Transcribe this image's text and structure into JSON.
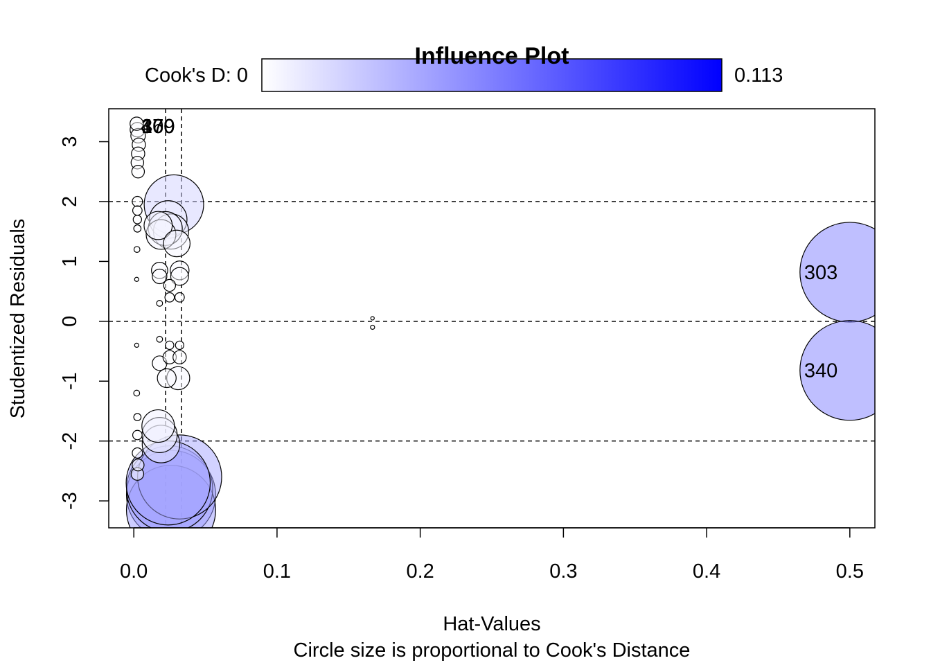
{
  "chart_data": {
    "type": "scatter",
    "title": "Influence Plot",
    "xlabel": "Hat-Values",
    "subtitle": "Circle size is proportional to Cook's Distance",
    "ylabel": "Studentized Residuals",
    "xlim": [
      -0.0175,
      0.5175
    ],
    "ylim": [
      -3.45,
      3.55
    ],
    "x_ticks": [
      0.0,
      0.1,
      0.2,
      0.3,
      0.4,
      0.5
    ],
    "x_tick_labels": [
      "0.0",
      "0.1",
      "0.2",
      "0.3",
      "0.4",
      "0.5"
    ],
    "y_ticks": [
      -3,
      -2,
      -1,
      0,
      1,
      2,
      3
    ],
    "y_tick_labels": [
      "-3",
      "-2",
      "-1",
      "0",
      "1",
      "2",
      "3"
    ],
    "reference_lines": {
      "horizontal": [
        -2,
        0,
        2
      ],
      "vertical": [
        0.0222,
        0.0333
      ]
    },
    "legend": {
      "label_left": "Cook's D: 0",
      "label_right": "0.113",
      "min": 0,
      "max": 0.113,
      "color_low": "#ffffff",
      "color_high": "#0000ff",
      "placement": "top"
    },
    "cook_max": 0.113,
    "points": [
      {
        "x": 0.002,
        "y": 3.3,
        "cook": 0.001,
        "label": ""
      },
      {
        "x": 0.0025,
        "y": 3.2,
        "cook": 0.0012,
        "label": ""
      },
      {
        "x": 0.003,
        "y": 3.1,
        "cook": 0.0012,
        "label": ""
      },
      {
        "x": 0.0035,
        "y": 2.95,
        "cook": 0.001,
        "label": ""
      },
      {
        "x": 0.003,
        "y": 2.8,
        "cook": 0.001,
        "label": ""
      },
      {
        "x": 0.0025,
        "y": 2.65,
        "cook": 0.0009,
        "label": ""
      },
      {
        "x": 0.003,
        "y": 2.5,
        "cook": 0.0009,
        "label": ""
      },
      {
        "x": 0.0025,
        "y": 2.0,
        "cook": 0.0006,
        "label": ""
      },
      {
        "x": 0.0025,
        "y": 1.85,
        "cook": 0.0005,
        "label": ""
      },
      {
        "x": 0.0025,
        "y": 1.7,
        "cook": 0.0004,
        "label": ""
      },
      {
        "x": 0.0025,
        "y": 1.55,
        "cook": 0.0003,
        "label": ""
      },
      {
        "x": 0.0022,
        "y": 1.2,
        "cook": 0.0002,
        "label": ""
      },
      {
        "x": 0.002,
        "y": 0.7,
        "cook": 0.0001,
        "label": ""
      },
      {
        "x": 0.002,
        "y": -0.4,
        "cook": 0.0001,
        "label": ""
      },
      {
        "x": 0.002,
        "y": -1.2,
        "cook": 0.0002,
        "label": ""
      },
      {
        "x": 0.0025,
        "y": -1.6,
        "cook": 0.0003,
        "label": ""
      },
      {
        "x": 0.0025,
        "y": -1.9,
        "cook": 0.0005,
        "label": ""
      },
      {
        "x": 0.0025,
        "y": -2.2,
        "cook": 0.0006,
        "label": ""
      },
      {
        "x": 0.003,
        "y": -2.4,
        "cook": 0.0008,
        "label": ""
      },
      {
        "x": 0.0025,
        "y": -2.55,
        "cook": 0.0009,
        "label": ""
      },
      {
        "x": 0.017,
        "y": 1.6,
        "cook": 0.0045,
        "label": ""
      },
      {
        "x": 0.019,
        "y": 1.45,
        "cook": 0.005,
        "label": ""
      },
      {
        "x": 0.022,
        "y": 1.55,
        "cook": 0.0065,
        "label": ""
      },
      {
        "x": 0.024,
        "y": 1.7,
        "cook": 0.008,
        "label": ""
      },
      {
        "x": 0.026,
        "y": 1.5,
        "cook": 0.007,
        "label": ""
      },
      {
        "x": 0.028,
        "y": 1.95,
        "cook": 0.02,
        "label": ""
      },
      {
        "x": 0.03,
        "y": 1.3,
        "cook": 0.004,
        "label": ""
      },
      {
        "x": 0.018,
        "y": 0.85,
        "cook": 0.0015,
        "label": ""
      },
      {
        "x": 0.018,
        "y": 0.75,
        "cook": 0.0012,
        "label": ""
      },
      {
        "x": 0.032,
        "y": 0.85,
        "cook": 0.002,
        "label": ""
      },
      {
        "x": 0.032,
        "y": 0.75,
        "cook": 0.0018,
        "label": ""
      },
      {
        "x": 0.025,
        "y": 0.6,
        "cook": 0.0008,
        "label": ""
      },
      {
        "x": 0.025,
        "y": 0.4,
        "cook": 0.0005,
        "label": ""
      },
      {
        "x": 0.032,
        "y": 0.4,
        "cook": 0.0005,
        "label": ""
      },
      {
        "x": 0.018,
        "y": 0.3,
        "cook": 0.0002,
        "label": ""
      },
      {
        "x": 0.018,
        "y": -0.3,
        "cook": 0.0002,
        "label": ""
      },
      {
        "x": 0.025,
        "y": -0.4,
        "cook": 0.0004,
        "label": ""
      },
      {
        "x": 0.032,
        "y": -0.4,
        "cook": 0.0004,
        "label": ""
      },
      {
        "x": 0.018,
        "y": -0.7,
        "cook": 0.0012,
        "label": ""
      },
      {
        "x": 0.025,
        "y": -0.6,
        "cook": 0.001,
        "label": ""
      },
      {
        "x": 0.032,
        "y": -0.6,
        "cook": 0.001,
        "label": ""
      },
      {
        "x": 0.023,
        "y": -0.95,
        "cook": 0.002,
        "label": ""
      },
      {
        "x": 0.031,
        "y": -0.95,
        "cook": 0.003,
        "label": ""
      },
      {
        "x": 0.017,
        "y": -1.75,
        "cook": 0.006,
        "label": ""
      },
      {
        "x": 0.018,
        "y": -1.9,
        "cook": 0.007,
        "label": ""
      },
      {
        "x": 0.019,
        "y": -2.05,
        "cook": 0.008,
        "label": ""
      },
      {
        "x": 0.032,
        "y": -2.6,
        "cook": 0.04,
        "label": ""
      },
      {
        "x": 0.024,
        "y": -2.7,
        "cook": 0.04,
        "label": ""
      },
      {
        "x": 0.025,
        "y": -2.8,
        "cook": 0.042,
        "label": ""
      },
      {
        "x": 0.026,
        "y": -2.9,
        "cook": 0.045,
        "label": ""
      },
      {
        "x": 0.026,
        "y": -3.15,
        "cook": 0.045,
        "label": ""
      },
      {
        "x": 0.1667,
        "y": 0.05,
        "cook": 5e-05,
        "label": ""
      },
      {
        "x": 0.1667,
        "y": -0.1,
        "cook": 0.0001,
        "label": ""
      },
      {
        "x": 0.5,
        "y": 0.82,
        "cook": 0.0563,
        "label": "303"
      },
      {
        "x": 0.5,
        "y": -0.82,
        "cook": 0.0563,
        "label": "340"
      }
    ],
    "point_labels_top": [
      "479",
      "360",
      "170",
      "300"
    ]
  }
}
